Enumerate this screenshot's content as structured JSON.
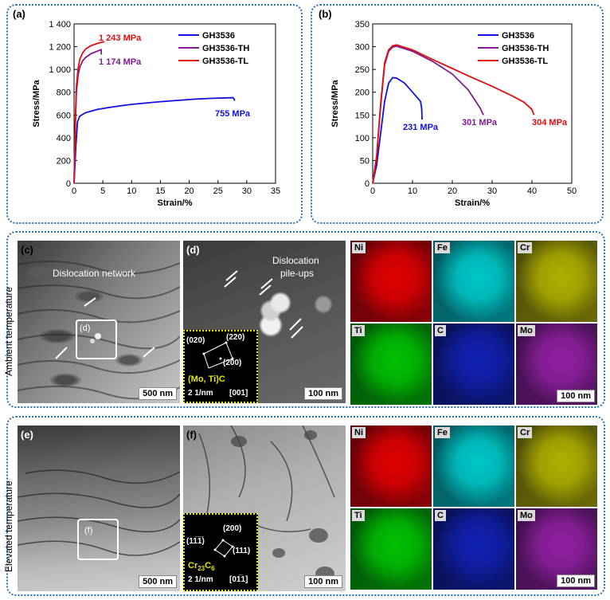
{
  "panel_a": {
    "label": "(a)",
    "chart_data": {
      "type": "line",
      "xlabel": "Strain/%",
      "ylabel": "Stress/MPa",
      "xlim": [
        0,
        35
      ],
      "ylim": [
        0,
        1400
      ],
      "xticks": [
        "0",
        "5",
        "10",
        "15",
        "20",
        "25",
        "30",
        "35"
      ],
      "yticks": [
        "0",
        "200",
        "400",
        "600",
        "800",
        "1 000",
        "1 200",
        "1 400"
      ],
      "series": [
        {
          "name": "GH3536",
          "color": "#1010e0",
          "x": [
            0,
            0.3,
            0.6,
            1.0,
            2,
            4,
            6,
            8,
            10,
            12,
            15,
            18,
            21,
            24,
            27.6,
            27.8,
            27.9
          ],
          "y": [
            0,
            320,
            540,
            590,
            620,
            648,
            665,
            680,
            693,
            703,
            717,
            728,
            739,
            746,
            752,
            740,
            725
          ],
          "end_label": "755 MPa"
        },
        {
          "name": "GH3536-TH",
          "color": "#7f1a8f",
          "x": [
            0,
            0.2,
            0.4,
            0.7,
            1.0,
            1.5,
            2,
            3,
            4,
            4.7,
            4.75
          ],
          "y": [
            0,
            450,
            800,
            950,
            1020,
            1075,
            1105,
            1140,
            1160,
            1174,
            1130
          ],
          "end_label": "1 174 MPa"
        },
        {
          "name": "GH3536-TL",
          "color": "#e01010",
          "x": [
            0,
            0.2,
            0.4,
            0.7,
            1.0,
            1.5,
            2,
            3,
            4,
            5.1,
            5.2
          ],
          "y": [
            0,
            500,
            850,
            1010,
            1090,
            1145,
            1180,
            1210,
            1228,
            1243,
            1236
          ],
          "end_label": "1 243 MPa"
        }
      ]
    }
  },
  "panel_b": {
    "label": "(b)",
    "chart_data": {
      "type": "line",
      "xlabel": "Strain/%",
      "ylabel": "Stress/MPa",
      "xlim": [
        0,
        50
      ],
      "ylim": [
        0,
        350
      ],
      "xticks": [
        "0",
        "10",
        "20",
        "30",
        "40",
        "50"
      ],
      "yticks": [
        "0",
        "50",
        "100",
        "150",
        "200",
        "250",
        "300",
        "350"
      ],
      "series": [
        {
          "name": "GH3536",
          "color": "#1010e0",
          "x": [
            0,
            1,
            2,
            3,
            4,
            5,
            6,
            8,
            10,
            12,
            12.3,
            12.4
          ],
          "y": [
            0,
            40,
            110,
            180,
            220,
            232,
            231,
            220,
            200,
            180,
            165,
            140
          ],
          "end_label": "231 MPa"
        },
        {
          "name": "GH3536-TH",
          "color": "#7f1a8f",
          "x": [
            0,
            1,
            2,
            3,
            4,
            5,
            6,
            10,
            15,
            20,
            24,
            27,
            27.8
          ],
          "y": [
            0,
            60,
            170,
            260,
            290,
            299,
            301,
            290,
            268,
            240,
            205,
            165,
            150
          ],
          "end_label": "301 MPa"
        },
        {
          "name": "GH3536-TL",
          "color": "#e01010",
          "x": [
            0,
            1,
            2,
            3,
            4,
            5,
            6,
            10,
            15,
            20,
            25,
            30,
            35,
            38,
            40,
            40.5
          ],
          "y": [
            0,
            60,
            175,
            265,
            293,
            302,
            304,
            293,
            272,
            252,
            232,
            213,
            192,
            178,
            162,
            150
          ],
          "end_label": "304 MPa"
        }
      ]
    }
  },
  "side_label_top": "Ambient temperature",
  "side_label_bottom": "Elevated temperature",
  "panel_c": {
    "label": "(c)",
    "annotation": "Dislocation network",
    "inset_label": "(d)",
    "scale": "500 nm"
  },
  "panel_d": {
    "label": "(d)",
    "annotation_line1": "Dislocation",
    "annotation_line2": "pile-ups",
    "scale": "100 nm",
    "diffraction": {
      "spot1": "(020)",
      "spot2": "(220)",
      "spot3": "(200)",
      "phase": "(Mo, Ti)C",
      "scale": "2 1/nm",
      "zone": "[001]"
    }
  },
  "panel_e": {
    "label": "(e)",
    "inset_label": "(f)",
    "scale": "500 nm"
  },
  "panel_f": {
    "label": "(f)",
    "scale": "100 nm",
    "diffraction": {
      "spot1": "(200)",
      "spot2": "(11̅1̅)",
      "spot3": "(111)",
      "phase_base": "Cr",
      "phase_sub1": "23",
      "phase_mid": "C",
      "phase_sub2": "6",
      "scale": "2 1/nm",
      "zone": "[01̅1]"
    }
  },
  "eds_top": {
    "maps": [
      {
        "element": "Ni",
        "color": "#e00000"
      },
      {
        "element": "Fe",
        "color": "#00c8c8"
      },
      {
        "element": "Cr",
        "color": "#b0b000"
      },
      {
        "element": "Ti",
        "color": "#00c000"
      },
      {
        "element": "C",
        "color": "#1020b0"
      },
      {
        "element": "Mo",
        "color": "#9020a0"
      }
    ],
    "scale": "100 nm"
  },
  "eds_bottom": {
    "maps": [
      {
        "element": "Ni",
        "color": "#e00000"
      },
      {
        "element": "Fe",
        "color": "#00c8c8"
      },
      {
        "element": "Cr",
        "color": "#b0b000"
      },
      {
        "element": "Ti",
        "color": "#00c000"
      },
      {
        "element": "C",
        "color": "#1020b0"
      },
      {
        "element": "Mo",
        "color": "#9020a0"
      }
    ],
    "scale": "100 nm"
  }
}
